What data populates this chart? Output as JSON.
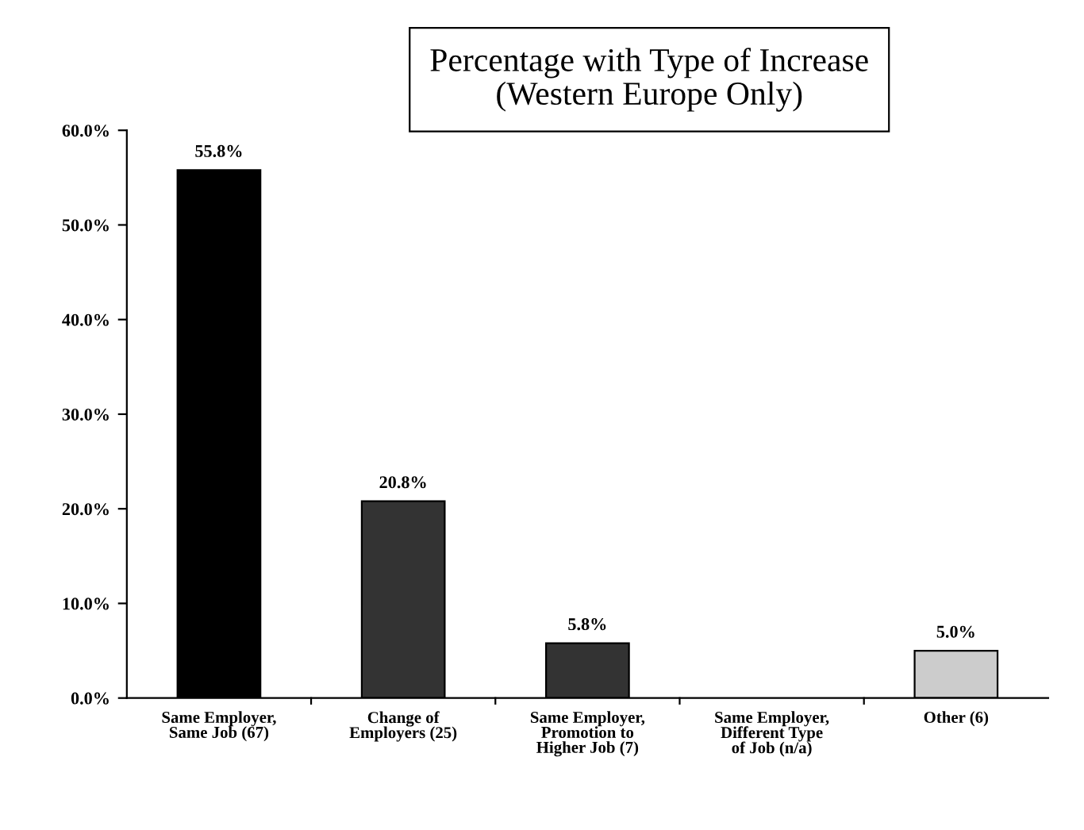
{
  "chart_data": {
    "type": "bar",
    "title": "Percentage with Type of Increase\n(Western Europe Only)",
    "categories": [
      "Same Employer,\nSame Job (67)",
      "Change of\nEmployers (25)",
      "Same Employer,\nPromotion to\nHigher Job (7)",
      "Same Employer,\nDifferent Type\nof Job (n/a)",
      "Other (6)"
    ],
    "values": [
      55.8,
      20.8,
      5.8,
      null,
      5.0
    ],
    "colors": [
      "#000000",
      "#333333",
      "#333333",
      "#333333",
      "#cccccc"
    ],
    "value_labels": [
      "55.8%",
      "20.8%",
      "5.8%",
      null,
      "5.0%"
    ],
    "ylim": [
      0,
      60
    ],
    "yticks": [
      {
        "value": 0,
        "label": "0.0%"
      },
      {
        "value": 10,
        "label": "10.0%"
      },
      {
        "value": 20,
        "label": "20.0%"
      },
      {
        "value": 30,
        "label": "30.0%"
      },
      {
        "value": 40,
        "label": "40.0%"
      },
      {
        "value": 50,
        "label": "50.0%"
      },
      {
        "value": 60,
        "label": "60.0%"
      }
    ],
    "grid": false,
    "legend": false
  }
}
